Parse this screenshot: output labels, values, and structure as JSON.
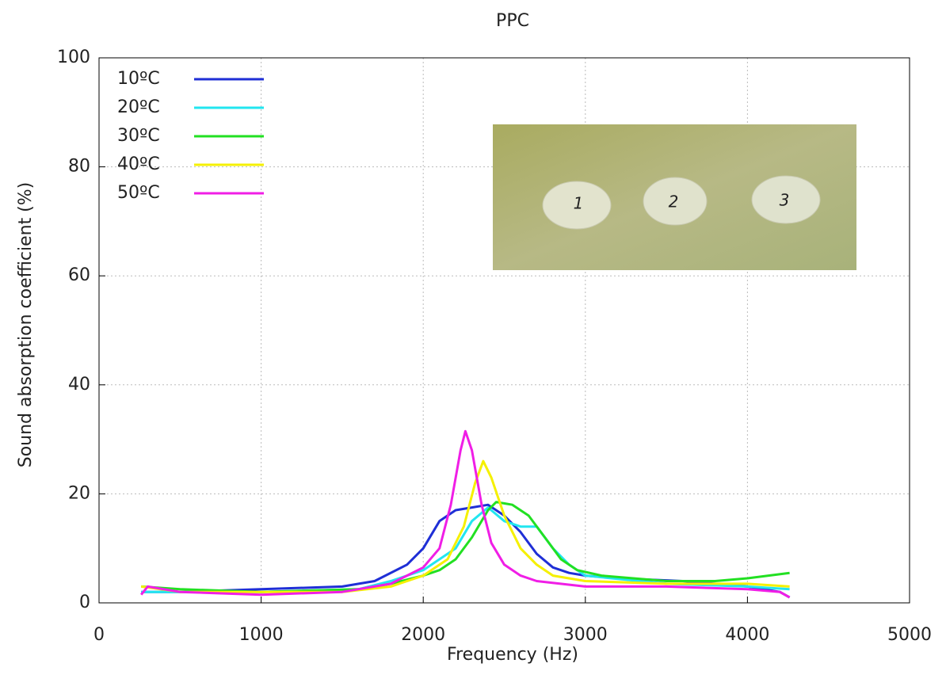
{
  "chart_data": {
    "type": "line",
    "title": "PPC",
    "x_label": "Frequency (Hz)",
    "y_label": "Sound absorption coefficient (%)",
    "xlim": [
      0,
      5000
    ],
    "xticks": [
      0,
      1000,
      2000,
      3000,
      4000,
      5000
    ],
    "ylim": [
      0,
      100
    ],
    "yticks": [
      0,
      20,
      40,
      60,
      80,
      100
    ],
    "grid": true,
    "legend": "upper left",
    "inset_labels": [
      "1",
      "2",
      "3"
    ],
    "series": [
      {
        "name": "10ºC",
        "color": "#1f2fd6",
        "x": [
          260,
          500,
          1000,
          1500,
          1700,
          1900,
          2000,
          2100,
          2200,
          2300,
          2400,
          2500,
          2600,
          2700,
          2800,
          2900,
          3000,
          3200,
          3600,
          4000,
          4200,
          4260
        ],
        "values": [
          2,
          2,
          2.5,
          3,
          4,
          7,
          10,
          15,
          17,
          17.5,
          18,
          16,
          13,
          9,
          6.5,
          5.5,
          5,
          4.5,
          4,
          3,
          2,
          1
        ]
      },
      {
        "name": "20ºC",
        "color": "#22e6f0",
        "x": [
          260,
          1000,
          1600,
          1800,
          2000,
          2200,
          2300,
          2400,
          2500,
          2600,
          2700,
          2800,
          2900,
          3000,
          3500,
          4000,
          4260
        ],
        "values": [
          2,
          2,
          2.5,
          4,
          6,
          10,
          15,
          17.5,
          15,
          14,
          14,
          10,
          7,
          5,
          3.5,
          3,
          2.5
        ]
      },
      {
        "name": "30ºC",
        "color": "#22e022",
        "x": [
          260,
          500,
          1000,
          1600,
          1800,
          2000,
          2100,
          2200,
          2300,
          2400,
          2450,
          2550,
          2650,
          2750,
          2850,
          2950,
          3100,
          3500,
          3800,
          4000,
          4260
        ],
        "values": [
          3,
          2.5,
          2,
          2.5,
          3.5,
          5,
          6,
          8,
          12,
          17,
          18.5,
          18,
          16,
          12,
          8,
          6,
          5,
          4,
          4,
          4.5,
          5.5
        ]
      },
      {
        "name": "40ºC",
        "color": "#f5f000",
        "x": [
          260,
          500,
          1500,
          1800,
          2000,
          2150,
          2250,
          2320,
          2370,
          2420,
          2500,
          2600,
          2700,
          2800,
          3000,
          3500,
          4000,
          4260
        ],
        "values": [
          3,
          2,
          2,
          3,
          5,
          8,
          14,
          22,
          26,
          23,
          16,
          10,
          7,
          5,
          4,
          3.5,
          3.5,
          3
        ]
      },
      {
        "name": "50ºC",
        "color": "#f01ee6",
        "x": [
          260,
          300,
          500,
          1000,
          1500,
          1800,
          1900,
          2000,
          2100,
          2170,
          2230,
          2260,
          2300,
          2360,
          2420,
          2500,
          2600,
          2700,
          3000,
          3500,
          4000,
          4200,
          4260
        ],
        "values": [
          1.5,
          3,
          2,
          1.5,
          2,
          3.5,
          5,
          6.5,
          10,
          18,
          28,
          31.5,
          28,
          18,
          11,
          7,
          5,
          4,
          3,
          3,
          2.5,
          2,
          1
        ]
      }
    ]
  }
}
